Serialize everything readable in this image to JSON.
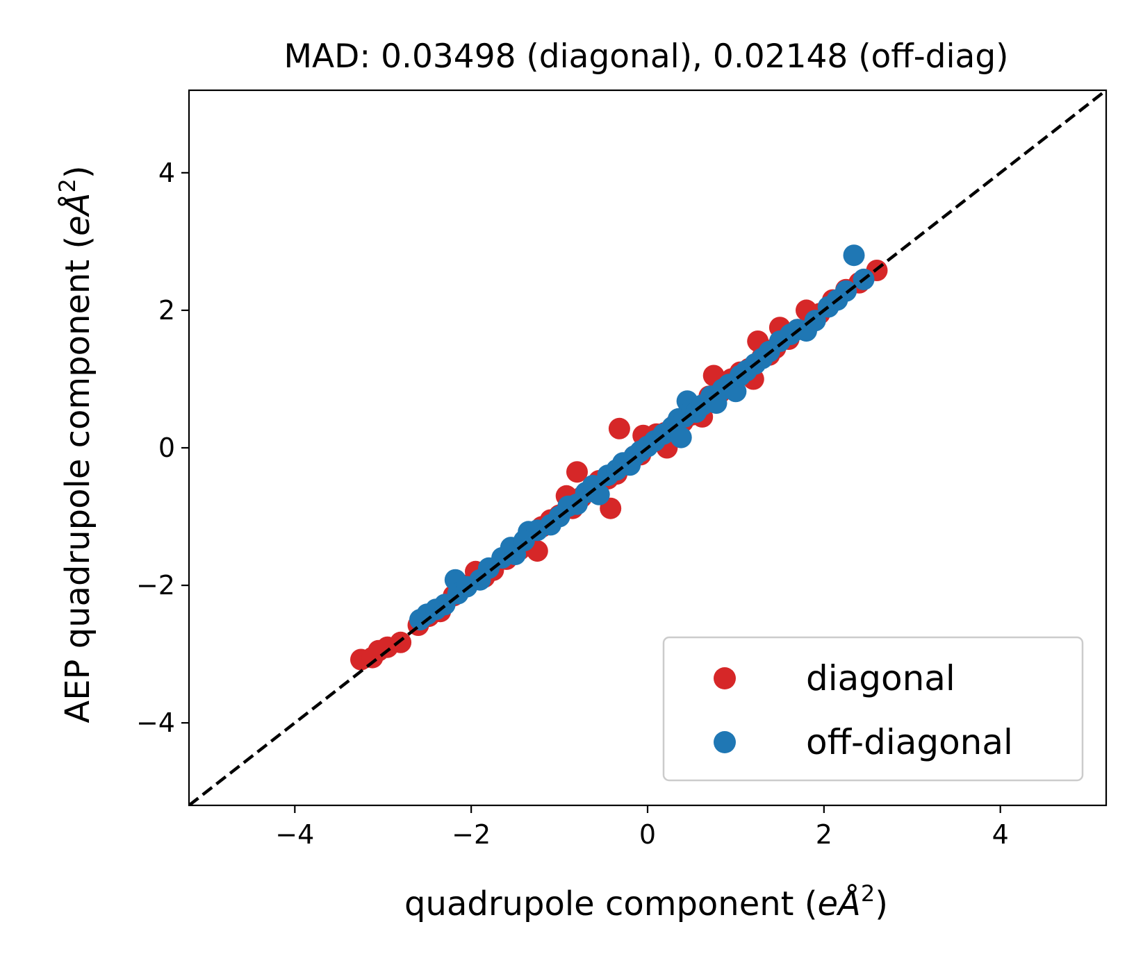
{
  "chart_data": {
    "type": "scatter",
    "title": "MAD: 0.03498 (diagonal), 0.02148 (off-diag)",
    "xlabel": "quadrupole component (eÅ²)",
    "xlabel_parts": {
      "prefix": "quadrupole component (",
      "italic": "eÅ",
      "sup": "2",
      "suffix": ")"
    },
    "ylabel": "AEP quadrupole component (eÅ²)",
    "ylabel_parts": {
      "prefix": "AEP quadrupole component (",
      "italic": "eÅ",
      "sup": "2",
      "suffix": ")"
    },
    "xlim": [
      -5.2,
      5.2
    ],
    "ylim": [
      -5.2,
      5.2
    ],
    "xticks": [
      -4,
      -2,
      0,
      2,
      4
    ],
    "yticks": [
      -4,
      -2,
      0,
      2,
      4
    ],
    "xtick_labels": [
      "−4",
      "−2",
      "0",
      "2",
      "4"
    ],
    "ytick_labels": [
      "−4",
      "−2",
      "0",
      "2",
      "4"
    ],
    "grid": false,
    "legend_position": "lower-right",
    "reference_line": {
      "style": "dashed",
      "color": "#000000",
      "from": [
        -5.2,
        -5.2
      ],
      "to": [
        5.2,
        5.2
      ]
    },
    "series": [
      {
        "name": "diagonal",
        "color": "#d62728",
        "points": [
          [
            -3.25,
            -3.08
          ],
          [
            -3.12,
            -3.05
          ],
          [
            -3.05,
            -2.95
          ],
          [
            -2.95,
            -2.9
          ],
          [
            -2.8,
            -2.83
          ],
          [
            -2.6,
            -2.58
          ],
          [
            -2.48,
            -2.45
          ],
          [
            -2.35,
            -2.38
          ],
          [
            -2.2,
            -2.15
          ],
          [
            -2.05,
            -2.0
          ],
          [
            -1.95,
            -1.8
          ],
          [
            -1.85,
            -1.88
          ],
          [
            -1.75,
            -1.78
          ],
          [
            -1.6,
            -1.62
          ],
          [
            -1.45,
            -1.48
          ],
          [
            -1.35,
            -1.32
          ],
          [
            -1.25,
            -1.5
          ],
          [
            -1.2,
            -1.15
          ],
          [
            -1.1,
            -1.05
          ],
          [
            -1.0,
            -0.98
          ],
          [
            -0.92,
            -0.7
          ],
          [
            -0.85,
            -0.88
          ],
          [
            -0.8,
            -0.35
          ],
          [
            -0.75,
            -0.72
          ],
          [
            -0.65,
            -0.62
          ],
          [
            -0.55,
            -0.48
          ],
          [
            -0.45,
            -0.45
          ],
          [
            -0.42,
            -0.88
          ],
          [
            -0.35,
            -0.38
          ],
          [
            -0.32,
            0.28
          ],
          [
            -0.25,
            -0.22
          ],
          [
            -0.15,
            -0.12
          ],
          [
            -0.08,
            -0.1
          ],
          [
            -0.05,
            0.18
          ],
          [
            0.05,
            0.08
          ],
          [
            0.1,
            0.2
          ],
          [
            0.2,
            0.22
          ],
          [
            0.22,
            0.0
          ],
          [
            0.3,
            0.32
          ],
          [
            0.4,
            0.38
          ],
          [
            0.5,
            0.48
          ],
          [
            0.6,
            0.55
          ],
          [
            0.62,
            0.45
          ],
          [
            0.7,
            0.75
          ],
          [
            0.75,
            1.05
          ],
          [
            0.82,
            0.8
          ],
          [
            0.9,
            0.92
          ],
          [
            0.95,
            1.0
          ],
          [
            1.05,
            1.1
          ],
          [
            1.15,
            1.15
          ],
          [
            1.2,
            1.0
          ],
          [
            1.25,
            1.55
          ],
          [
            1.3,
            1.32
          ],
          [
            1.38,
            1.35
          ],
          [
            1.45,
            1.45
          ],
          [
            1.5,
            1.75
          ],
          [
            1.6,
            1.58
          ],
          [
            1.7,
            1.72
          ],
          [
            1.8,
            2.0
          ],
          [
            1.95,
            1.95
          ],
          [
            2.1,
            2.15
          ],
          [
            2.25,
            2.3
          ],
          [
            2.4,
            2.4
          ],
          [
            2.6,
            2.58
          ]
        ]
      },
      {
        "name": "off-diagonal",
        "color": "#1f77b4",
        "points": [
          [
            -2.58,
            -2.5
          ],
          [
            -2.5,
            -2.42
          ],
          [
            -2.4,
            -2.35
          ],
          [
            -2.3,
            -2.28
          ],
          [
            -2.18,
            -1.92
          ],
          [
            -2.15,
            -2.12
          ],
          [
            -2.05,
            -2.02
          ],
          [
            -1.9,
            -1.92
          ],
          [
            -1.8,
            -1.75
          ],
          [
            -1.65,
            -1.6
          ],
          [
            -1.55,
            -1.45
          ],
          [
            -1.5,
            -1.55
          ],
          [
            -1.4,
            -1.35
          ],
          [
            -1.35,
            -1.22
          ],
          [
            -1.25,
            -1.2
          ],
          [
            -1.1,
            -1.12
          ],
          [
            -1.0,
            -1.0
          ],
          [
            -0.9,
            -0.85
          ],
          [
            -0.8,
            -0.82
          ],
          [
            -0.7,
            -0.65
          ],
          [
            -0.62,
            -0.55
          ],
          [
            -0.55,
            -0.68
          ],
          [
            -0.45,
            -0.4
          ],
          [
            -0.35,
            -0.32
          ],
          [
            -0.28,
            -0.22
          ],
          [
            -0.2,
            -0.25
          ],
          [
            -0.15,
            -0.12
          ],
          [
            -0.08,
            -0.05
          ],
          [
            0.0,
            0.02
          ],
          [
            0.08,
            0.1
          ],
          [
            0.18,
            0.2
          ],
          [
            0.28,
            0.3
          ],
          [
            0.35,
            0.42
          ],
          [
            0.38,
            0.15
          ],
          [
            0.42,
            0.45
          ],
          [
            0.45,
            0.68
          ],
          [
            0.5,
            0.55
          ],
          [
            0.55,
            0.52
          ],
          [
            0.62,
            0.62
          ],
          [
            0.72,
            0.75
          ],
          [
            0.78,
            0.65
          ],
          [
            0.85,
            0.85
          ],
          [
            0.92,
            0.92
          ],
          [
            1.0,
            0.82
          ],
          [
            1.05,
            1.05
          ],
          [
            1.12,
            1.12
          ],
          [
            1.22,
            1.22
          ],
          [
            1.3,
            1.3
          ],
          [
            1.38,
            1.4
          ],
          [
            1.5,
            1.55
          ],
          [
            1.62,
            1.65
          ],
          [
            1.7,
            1.72
          ],
          [
            1.8,
            1.7
          ],
          [
            1.9,
            1.85
          ],
          [
            2.05,
            2.05
          ],
          [
            2.15,
            2.15
          ],
          [
            2.25,
            2.28
          ],
          [
            2.34,
            2.8
          ],
          [
            2.45,
            2.45
          ]
        ]
      }
    ]
  }
}
